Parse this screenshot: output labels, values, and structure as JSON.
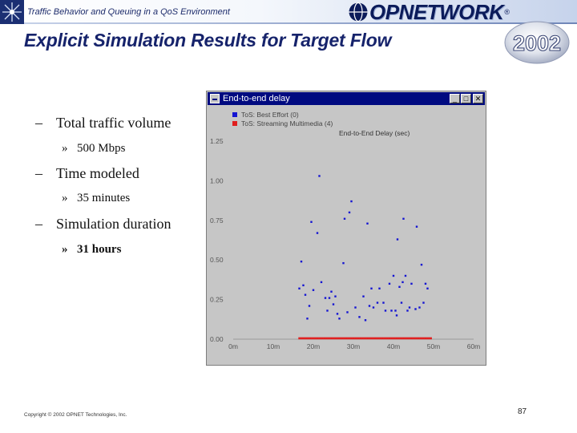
{
  "header": {
    "subtitle": "Traffic Behavior and Queuing in a QoS Environment",
    "brand": "OPNETWORK",
    "year": "2002"
  },
  "title": "Explicit Simulation Results for Target Flow",
  "bullets": [
    {
      "text": "Total traffic volume",
      "sub": "500 Mbps",
      "sub_bold": false
    },
    {
      "text": "Time modeled",
      "sub": "35 minutes",
      "sub_bold": false
    },
    {
      "text": "Simulation duration",
      "sub": "31 hours",
      "sub_bold": true
    }
  ],
  "chart_window": {
    "title": "End-to-end delay",
    "buttons": {
      "minimize": "_",
      "maximize": "□",
      "close": "✕"
    }
  },
  "colors": {
    "best_effort": "#1414d2",
    "streaming": "#e01e1e",
    "title": "#16236b"
  },
  "chart_data": {
    "type": "scatter",
    "title": "End-to-End Delay (sec)",
    "xlabel": "",
    "ylabel": "",
    "xlim": [
      0,
      60
    ],
    "ylim": [
      0,
      1.25
    ],
    "xticks": [
      "0m",
      "10m",
      "20m",
      "30m",
      "40m",
      "50m",
      "60m"
    ],
    "yticks": [
      "0.00",
      "0.25",
      "0.50",
      "0.75",
      "1.00",
      "1.25"
    ],
    "grid": false,
    "legend_position": "top-left",
    "series": [
      {
        "name": "ToS: Best Effort (0)",
        "color": "#1414d2",
        "points": [
          [
            16.5,
            0.32
          ],
          [
            17.0,
            0.49
          ],
          [
            17.5,
            0.34
          ],
          [
            18.0,
            0.28
          ],
          [
            18.5,
            0.13
          ],
          [
            19.0,
            0.21
          ],
          [
            19.5,
            0.74
          ],
          [
            20.0,
            0.31
          ],
          [
            21.0,
            0.67
          ],
          [
            21.5,
            1.03
          ],
          [
            22.0,
            0.36
          ],
          [
            23.0,
            0.26
          ],
          [
            23.5,
            0.18
          ],
          [
            24.0,
            0.26
          ],
          [
            24.5,
            0.3
          ],
          [
            25.0,
            0.22
          ],
          [
            25.5,
            0.27
          ],
          [
            26.0,
            0.16
          ],
          [
            26.5,
            0.13
          ],
          [
            27.5,
            0.48
          ],
          [
            27.8,
            0.76
          ],
          [
            28.5,
            0.17
          ],
          [
            29.0,
            0.8
          ],
          [
            29.5,
            0.87
          ],
          [
            30.5,
            0.2
          ],
          [
            31.5,
            0.14
          ],
          [
            32.5,
            0.27
          ],
          [
            33.0,
            0.12
          ],
          [
            33.5,
            0.73
          ],
          [
            34.0,
            0.21
          ],
          [
            34.5,
            0.32
          ],
          [
            35.0,
            0.2
          ],
          [
            36.0,
            0.23
          ],
          [
            36.5,
            0.32
          ],
          [
            37.5,
            0.23
          ],
          [
            38.0,
            0.18
          ],
          [
            39.0,
            0.35
          ],
          [
            39.5,
            0.18
          ],
          [
            40.0,
            0.4
          ],
          [
            40.5,
            0.18
          ],
          [
            40.8,
            0.15
          ],
          [
            41.0,
            0.63
          ],
          [
            41.5,
            0.33
          ],
          [
            42.0,
            0.23
          ],
          [
            42.3,
            0.36
          ],
          [
            42.5,
            0.76
          ],
          [
            43.0,
            0.4
          ],
          [
            43.5,
            0.18
          ],
          [
            44.0,
            0.2
          ],
          [
            44.5,
            0.35
          ],
          [
            45.5,
            0.19
          ],
          [
            45.8,
            0.71
          ],
          [
            46.5,
            0.2
          ],
          [
            47.0,
            0.47
          ],
          [
            47.5,
            0.23
          ],
          [
            48.0,
            0.35
          ],
          [
            48.5,
            0.32
          ]
        ]
      },
      {
        "name": "ToS: Streaming Multimedia (4)",
        "color": "#e01e1e",
        "x_start": 16.5,
        "x_end": 49.5,
        "x_step": 0.45,
        "y": 0.005
      }
    ]
  },
  "footer": {
    "copyright": "Copyright © 2002 OPNET Technologies, Inc.",
    "page_number": "87"
  }
}
